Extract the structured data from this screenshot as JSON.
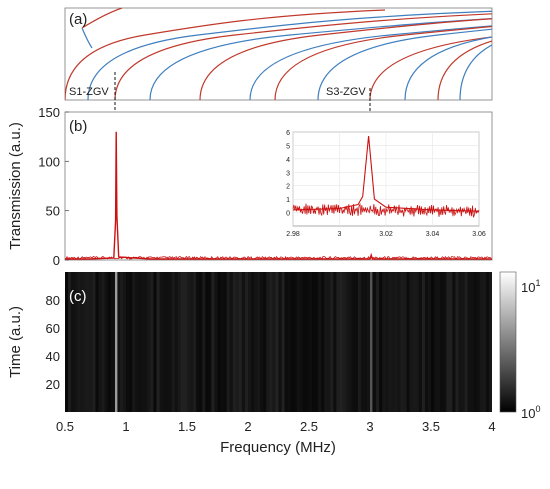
{
  "chart_data": [
    {
      "type": "line",
      "panel_label": "(a)",
      "annotations": [
        {
          "text": "S1-ZGV",
          "x": 0.92
        },
        {
          "text": "S3-ZGV",
          "x": 3.01
        }
      ],
      "xlim": [
        0.5,
        4
      ],
      "colors": {
        "symmetric": "#c0392b",
        "antisymmetric": "#3f7fbf"
      }
    },
    {
      "type": "line",
      "panel_label": "(b)",
      "ylabel": "Transmission (a.u.)",
      "xlim": [
        0.5,
        4
      ],
      "ylim": [
        0,
        150
      ],
      "yticks": [
        0,
        50,
        100,
        150
      ],
      "series": [
        {
          "color": "#cc1111",
          "x": [
            0.5,
            0.7,
            0.9,
            0.915,
            0.92,
            0.925,
            0.94,
            1.2,
            2.0,
            3.0,
            3.01,
            3.02,
            4.0
          ],
          "y": [
            1,
            1,
            2,
            40,
            130,
            45,
            3,
            1,
            1,
            1,
            5,
            1,
            1
          ]
        }
      ],
      "inset": {
        "xlim": [
          2.98,
          3.06
        ],
        "ylim": [
          -1,
          6
        ],
        "xticks": [
          "2.98",
          "3",
          "3.02",
          "3.04",
          "3.06"
        ],
        "yticks": [
          "0",
          "1",
          "2",
          "3",
          "4",
          "5",
          "6"
        ],
        "series": [
          {
            "color": "#cc1111",
            "x": [
              2.98,
              3.0,
              3.008,
              3.01,
              3.0125,
              3.015,
              3.02,
              3.04,
              3.06
            ],
            "y": [
              0.2,
              0.3,
              0.6,
              1.2,
              5.7,
              1.0,
              0.4,
              0.2,
              0.1
            ]
          }
        ]
      }
    },
    {
      "type": "heatmap",
      "panel_label": "(c)",
      "xlabel": "Frequency (MHz)",
      "ylabel": "Time (a.u.)",
      "xlim": [
        0.5,
        4
      ],
      "ylim": [
        0,
        100
      ],
      "xticks": [
        "0.5",
        "1",
        "1.5",
        "2",
        "2.5",
        "3",
        "3.5",
        "4"
      ],
      "yticks": [
        "20",
        "40",
        "60",
        "80"
      ],
      "bright_lines_x": [
        0.92,
        3.01
      ],
      "colorbar": {
        "scale": "log",
        "min_label_base": "10",
        "min_label_exp": "0",
        "max_label_base": "10",
        "max_label_exp": "1"
      }
    }
  ]
}
